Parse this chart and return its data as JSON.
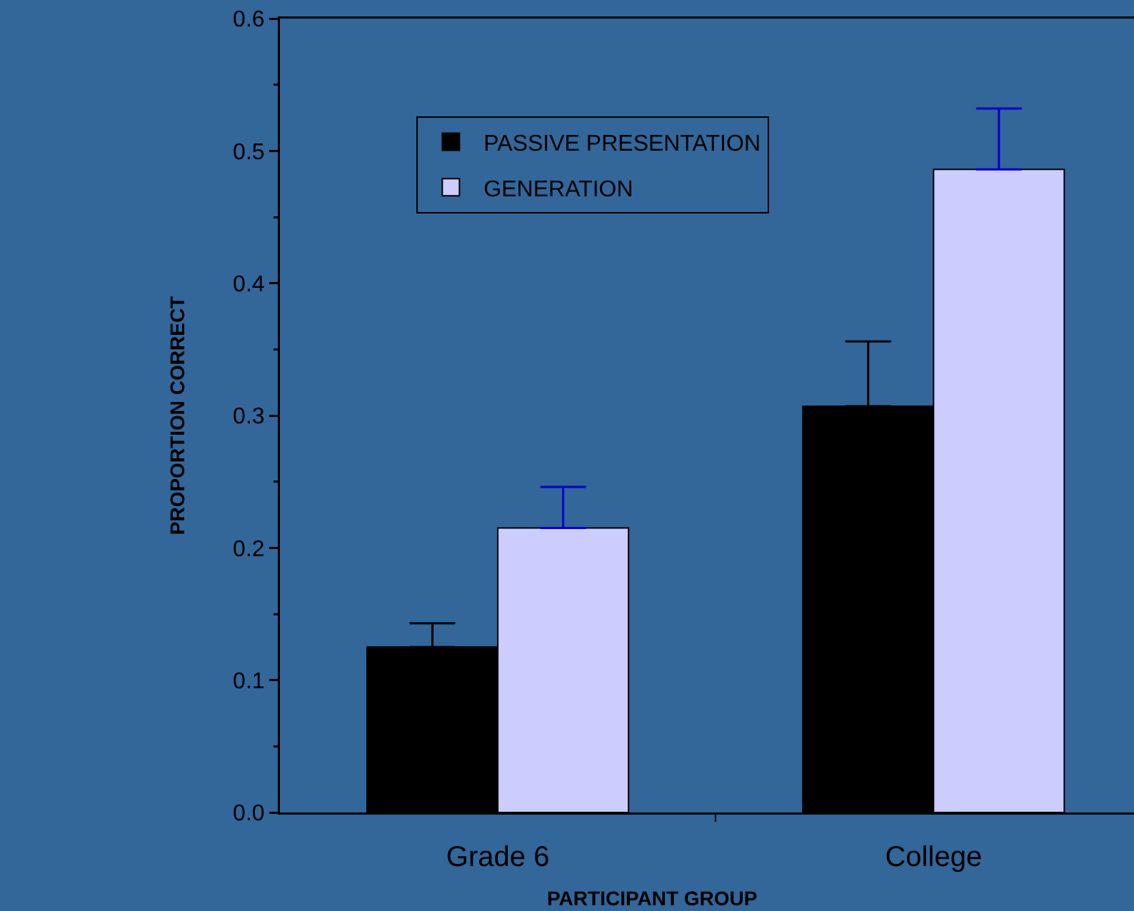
{
  "chart_data": {
    "type": "bar",
    "xlabel": "PARTICIPANT GROUP",
    "ylabel": "PROPORTION CORRECT",
    "categories": [
      "Grade 6",
      "College"
    ],
    "series": [
      {
        "name": "PASSIVE PRESENTATION",
        "color": "#000000",
        "values": [
          0.125,
          0.307
        ],
        "errors": [
          [
            0.125,
            0.143
          ],
          [
            0.307,
            0.356
          ]
        ]
      },
      {
        "name": "GENERATION",
        "color": "#ccccff",
        "values": [
          0.215,
          0.486
        ],
        "errors": [
          [
            0.215,
            0.246
          ],
          [
            0.486,
            0.532
          ]
        ]
      }
    ],
    "ylim": [
      0,
      0.6
    ],
    "yticks": [
      {
        "value": 0,
        "label": "0.0"
      },
      {
        "value": 0.05,
        "label": null
      },
      0.1,
      {
        "value": 0.15,
        "label": null
      },
      0.2,
      {
        "value": 0.25,
        "label": null
      },
      0.3,
      {
        "value": 0.35,
        "label": null
      },
      0.4,
      {
        "value": 0.45,
        "label": null
      },
      0.5,
      {
        "value": 0.55,
        "label": null
      },
      0.6
    ],
    "grid": false,
    "legend": "top left"
  }
}
